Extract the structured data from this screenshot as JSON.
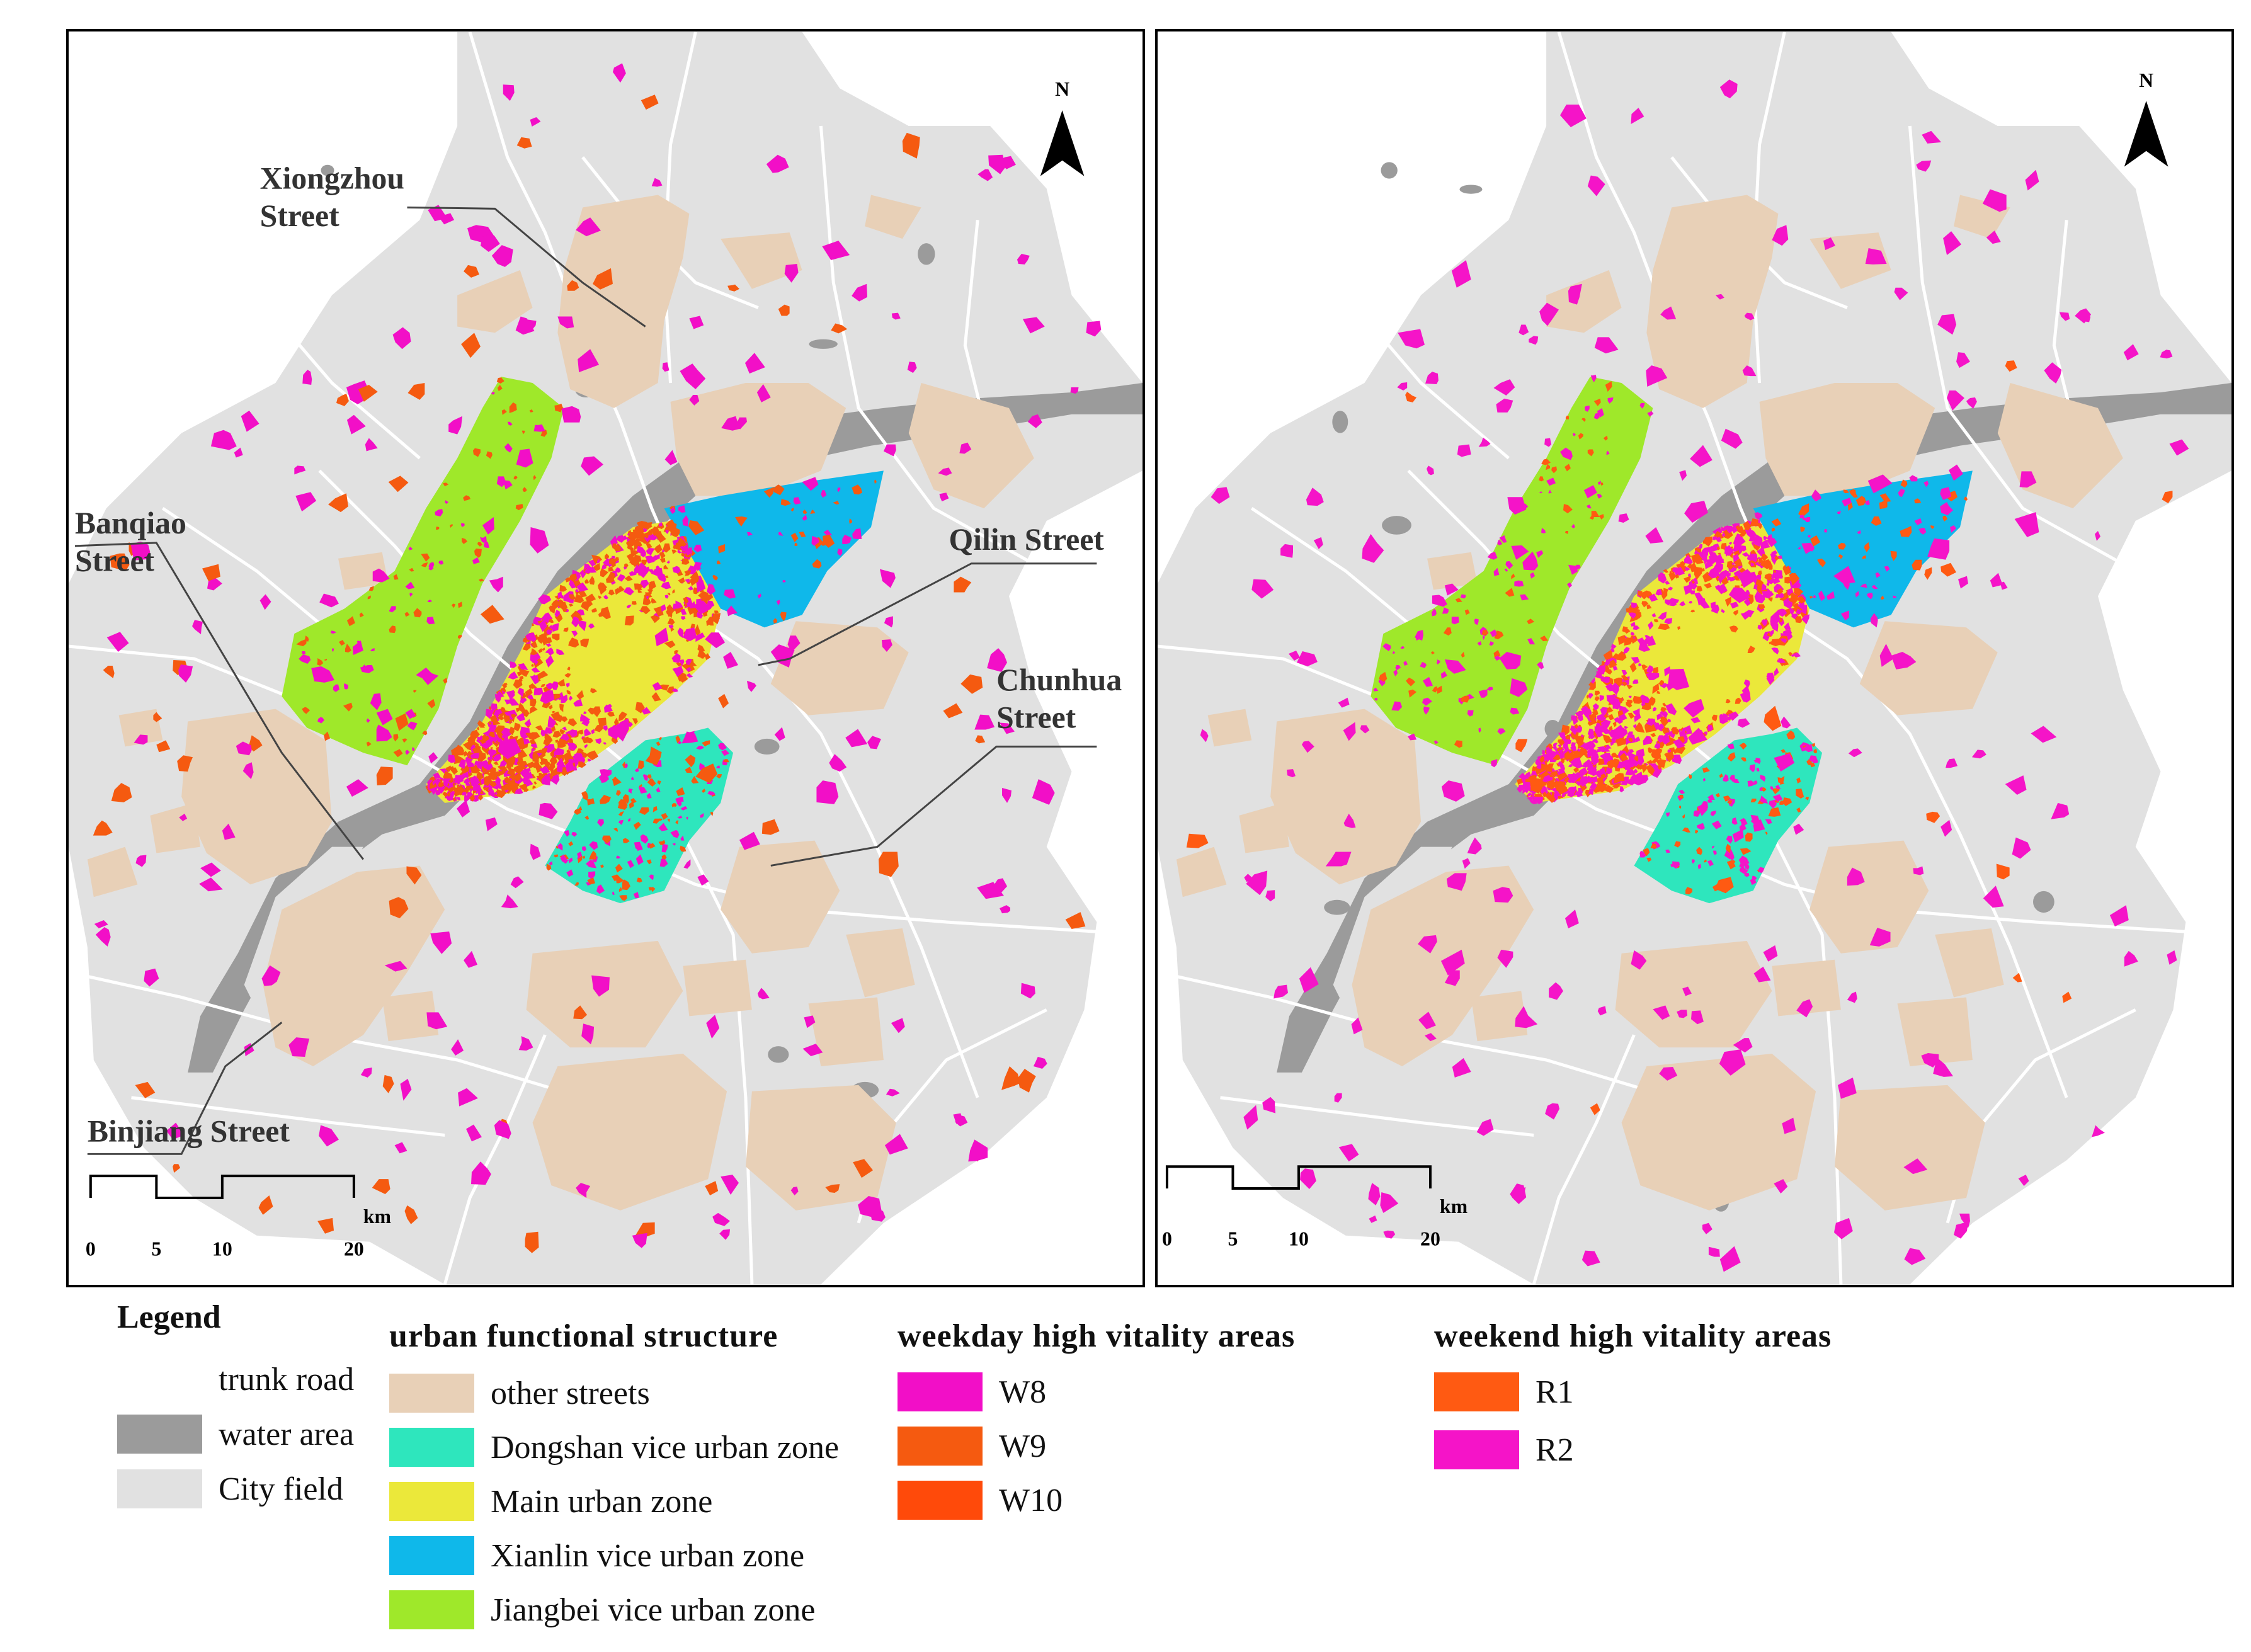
{
  "maps": [
    {
      "id": "weekday",
      "north": "N",
      "scale": {
        "unit": "km",
        "ticks": [
          "0",
          "5",
          "10",
          "20"
        ]
      },
      "street_labels": [
        {
          "name": "xiongzhou",
          "lines": [
            "Xiongzhou",
            "Street"
          ]
        },
        {
          "name": "banqiao",
          "lines": [
            "Banqiao",
            "Street"
          ]
        },
        {
          "name": "qilin",
          "lines": [
            "Qilin Street"
          ]
        },
        {
          "name": "chunhua",
          "lines": [
            "Chunhua",
            "Street"
          ]
        },
        {
          "name": "binjiang",
          "lines": [
            "Binjiang Street"
          ]
        }
      ]
    },
    {
      "id": "weekend",
      "north": "N",
      "scale": {
        "unit": "km",
        "ticks": [
          "0",
          "5",
          "10",
          "20"
        ]
      }
    }
  ],
  "legend": {
    "title": "Legend",
    "base": [
      {
        "label": "trunk road",
        "color": "#ffffff"
      },
      {
        "label": "water area",
        "color": "#9b9b9b"
      },
      {
        "label": "City field",
        "color": "#e1e1e1"
      }
    ],
    "functional": {
      "title": "urban functional structure",
      "items": [
        {
          "label": "other streets",
          "color": "#e8d0b7"
        },
        {
          "label": "Dongshan vice urban zone",
          "color": "#2ee6bd"
        },
        {
          "label": "Main urban zone",
          "color": "#ebe83a"
        },
        {
          "label": "Xianlin vice urban zone",
          "color": "#0fb8ea"
        },
        {
          "label": "Jiangbei vice urban zone",
          "color": "#9fe82a"
        }
      ]
    },
    "weekday": {
      "title": "weekday high vitality areas",
      "items": [
        {
          "label": "W8",
          "color": "#f20fc7"
        },
        {
          "label": "W9",
          "color": "#f55a10"
        },
        {
          "label": "W10",
          "color": "#ff4a0a"
        }
      ]
    },
    "weekend": {
      "title": "weekend high vitality areas",
      "items": [
        {
          "label": "R1",
          "color": "#ff5a12"
        },
        {
          "label": "R2",
          "color": "#f514c8"
        }
      ]
    }
  }
}
